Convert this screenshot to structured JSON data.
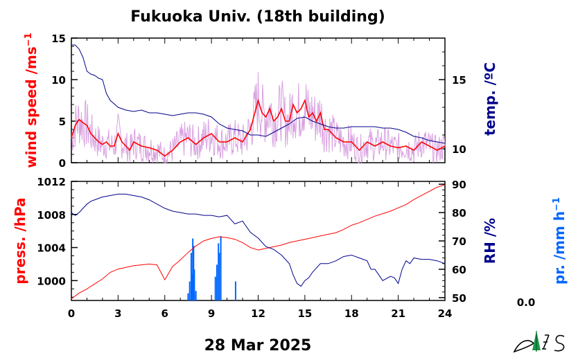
{
  "chart_data": [
    {
      "type": "line",
      "panel": "top",
      "title": "Fukuoka Univ. (18th building)",
      "xlim": [
        0,
        24
      ],
      "left_axis": {
        "label": "wind speed /ms",
        "label_sup": "−1",
        "ylim": [
          0,
          15
        ],
        "ticks": [
          "0",
          "5",
          "10",
          "15"
        ],
        "color": "#ff0000"
      },
      "right_axis": {
        "label": "temp. /ºC",
        "ylim": [
          9,
          18
        ],
        "ticks": [
          "10",
          "15"
        ],
        "color": "#00008b"
      },
      "series": [
        {
          "key": "wind_avg",
          "color": "#ff0000",
          "x": [
            0,
            0.25,
            0.5,
            0.75,
            1,
            1.25,
            1.5,
            1.75,
            2,
            2.25,
            2.5,
            2.75,
            3,
            3.25,
            3.5,
            3.75,
            4,
            4.5,
            5,
            5.5,
            6,
            6.5,
            7,
            7.5,
            8,
            8.5,
            9,
            9.5,
            10,
            10.5,
            11,
            11.5,
            12,
            12.25,
            12.5,
            12.75,
            13,
            13.25,
            13.5,
            13.75,
            14,
            14.25,
            14.5,
            14.75,
            15,
            15.25,
            15.5,
            15.75,
            16,
            16.25,
            16.5,
            16.75,
            17,
            17.5,
            18,
            18.5,
            19,
            19.5,
            20,
            20.5,
            21,
            21.5,
            22,
            22.5,
            23,
            23.5,
            24
          ],
          "y": [
            3,
            4.5,
            5.2,
            4.8,
            4.5,
            3.5,
            3,
            2.5,
            2.2,
            2.5,
            2,
            2,
            3.5,
            2.5,
            2,
            1.5,
            2.5,
            2,
            1.8,
            1.5,
            0.8,
            1.5,
            2.5,
            3,
            2.2,
            3,
            3.5,
            2.5,
            2.5,
            3,
            2.5,
            4,
            7.5,
            6,
            5.5,
            6.5,
            5,
            5.5,
            6.5,
            5,
            5,
            7,
            6,
            6.5,
            7.5,
            5.5,
            6,
            5,
            6,
            4,
            4,
            3.5,
            3,
            2.5,
            2.5,
            1.5,
            2.5,
            2,
            2.5,
            2,
            1.8,
            2,
            1.5,
            2.5,
            2,
            1.5,
            2
          ]
        },
        {
          "key": "temperature",
          "color": "#00008b",
          "x": [
            0,
            0.25,
            0.5,
            0.75,
            1,
            1.25,
            1.5,
            1.75,
            2,
            2.25,
            2.5,
            3,
            3.5,
            4,
            4.5,
            5,
            5.5,
            6,
            6.5,
            7,
            7.5,
            8,
            8.5,
            9,
            9.5,
            10,
            10.5,
            11,
            11.5,
            12,
            12.5,
            13,
            13.5,
            14,
            14.5,
            15,
            15.5,
            16,
            16.5,
            17,
            17.5,
            18,
            18.5,
            19,
            19.5,
            20,
            20.5,
            21,
            21.5,
            22,
            22.5,
            23,
            23.5,
            24
          ],
          "y": [
            17.5,
            17.5,
            17.2,
            16.6,
            15.6,
            15.4,
            15.3,
            15.1,
            15,
            14,
            13.5,
            13,
            12.8,
            12.7,
            12.8,
            12.6,
            12.6,
            12.5,
            12.4,
            12.5,
            12.6,
            12.6,
            12.5,
            12.3,
            11.8,
            11.5,
            11.4,
            11.3,
            11,
            11,
            10.9,
            11.2,
            11.5,
            11.8,
            12.2,
            12.3,
            12,
            11.8,
            11.6,
            11.5,
            11.5,
            11.6,
            11.6,
            11.6,
            11.6,
            11.5,
            11.5,
            11.4,
            11.2,
            10.9,
            10.8,
            10.6,
            10.5,
            10.4
          ]
        }
      ]
    },
    {
      "type": "line",
      "panel": "bottom",
      "xlim": [
        0,
        24
      ],
      "xticks": [
        "0",
        "3",
        "6",
        "9",
        "12",
        "15",
        "18",
        "21",
        "24"
      ],
      "date": "28 Mar 2025",
      "left_axis": {
        "label": "press. /hPa",
        "ylim": [
          997.6,
          1012
        ],
        "ticks": [
          "1000",
          "1004",
          "1008",
          "1012"
        ],
        "color": "#ff0000"
      },
      "right_axis": {
        "label": "RH /%",
        "ylim": [
          49,
          91
        ],
        "ticks": [
          "50",
          "60",
          "70",
          "80",
          "90"
        ],
        "color": "#00008b"
      },
      "precip_axis": {
        "label": "pr. /mm h",
        "label_sup": "−1",
        "total": "0.0",
        "color": "#0066ff"
      },
      "series": [
        {
          "key": "pressure",
          "color": "#ff0000",
          "x": [
            0,
            0.5,
            1,
            1.5,
            2,
            2.5,
            3,
            3.5,
            4,
            4.5,
            5,
            5.5,
            6,
            6.5,
            7,
            7.5,
            8,
            8.5,
            9,
            9.5,
            10,
            10.5,
            11,
            11.5,
            12,
            12.5,
            13,
            13.5,
            14,
            14.5,
            15,
            15.5,
            16,
            16.5,
            17,
            17.5,
            18,
            18.5,
            19,
            19.5,
            20,
            20.5,
            21,
            21.5,
            22,
            22.5,
            23,
            23.5,
            24
          ],
          "y": [
            997.8,
            998.5,
            999,
            999.6,
            1000.2,
            1001,
            1001.4,
            1001.6,
            1001.8,
            1001.9,
            1002,
            1001.9,
            1000.1,
            1001.7,
            1002.5,
            1003.4,
            1004.2,
            1004.8,
            1005.1,
            1005.3,
            1005.2,
            1005,
            1004.6,
            1004,
            1003.7,
            1003.9,
            1004.1,
            1004.3,
            1004.6,
            1004.8,
            1005,
            1005.2,
            1005.4,
            1005.6,
            1005.8,
            1006.2,
            1006.7,
            1007,
            1007.4,
            1007.8,
            1008.1,
            1008.4,
            1008.8,
            1009.2,
            1009.8,
            1010.3,
            1010.8,
            1011.3,
            1011.6
          ]
        },
        {
          "key": "humidity",
          "color": "#00008b",
          "x": [
            0,
            0.25,
            0.5,
            0.75,
            1,
            1.25,
            1.5,
            2,
            2.5,
            3,
            3.5,
            4,
            4.5,
            5,
            5.5,
            6,
            6.5,
            7,
            7.5,
            8,
            8.5,
            9,
            9.5,
            10,
            10.5,
            11,
            11.5,
            12,
            12.5,
            13,
            13.5,
            14,
            14.25,
            14.5,
            14.75,
            15,
            15.25,
            15.5,
            16,
            16.5,
            17,
            17.5,
            18,
            18.5,
            19,
            19.25,
            19.5,
            19.75,
            20,
            20.5,
            20.75,
            21,
            21.25,
            21.5,
            21.75,
            22,
            22.5,
            23,
            23.5,
            24
          ],
          "y": [
            80,
            79,
            80,
            81.5,
            83,
            84,
            84.5,
            85.5,
            86,
            86.5,
            86.5,
            86,
            85.5,
            84.5,
            83,
            81.5,
            80.5,
            80,
            79.5,
            79.5,
            79,
            79,
            78.5,
            79,
            76,
            77,
            73,
            71,
            68,
            67,
            65,
            62,
            58,
            55,
            54,
            56,
            57,
            59,
            62,
            62,
            63,
            64.5,
            65,
            64,
            63,
            60,
            60,
            58,
            56,
            57.5,
            57,
            55,
            60,
            63,
            62,
            64,
            63.5,
            63.5,
            63,
            62
          ]
        }
      ],
      "bars": {
        "key": "precipitation",
        "color": "#0066ff",
        "x": [
          7.5,
          7.6,
          7.7,
          7.75,
          7.8,
          7.85,
          7.9,
          8,
          9.25,
          9.35,
          9.45,
          9.5,
          9.6,
          10.55
        ],
        "y": [
          3,
          8,
          20,
          11,
          26,
          23,
          13,
          4,
          10,
          15,
          24,
          20,
          27,
          8
        ]
      }
    }
  ]
}
